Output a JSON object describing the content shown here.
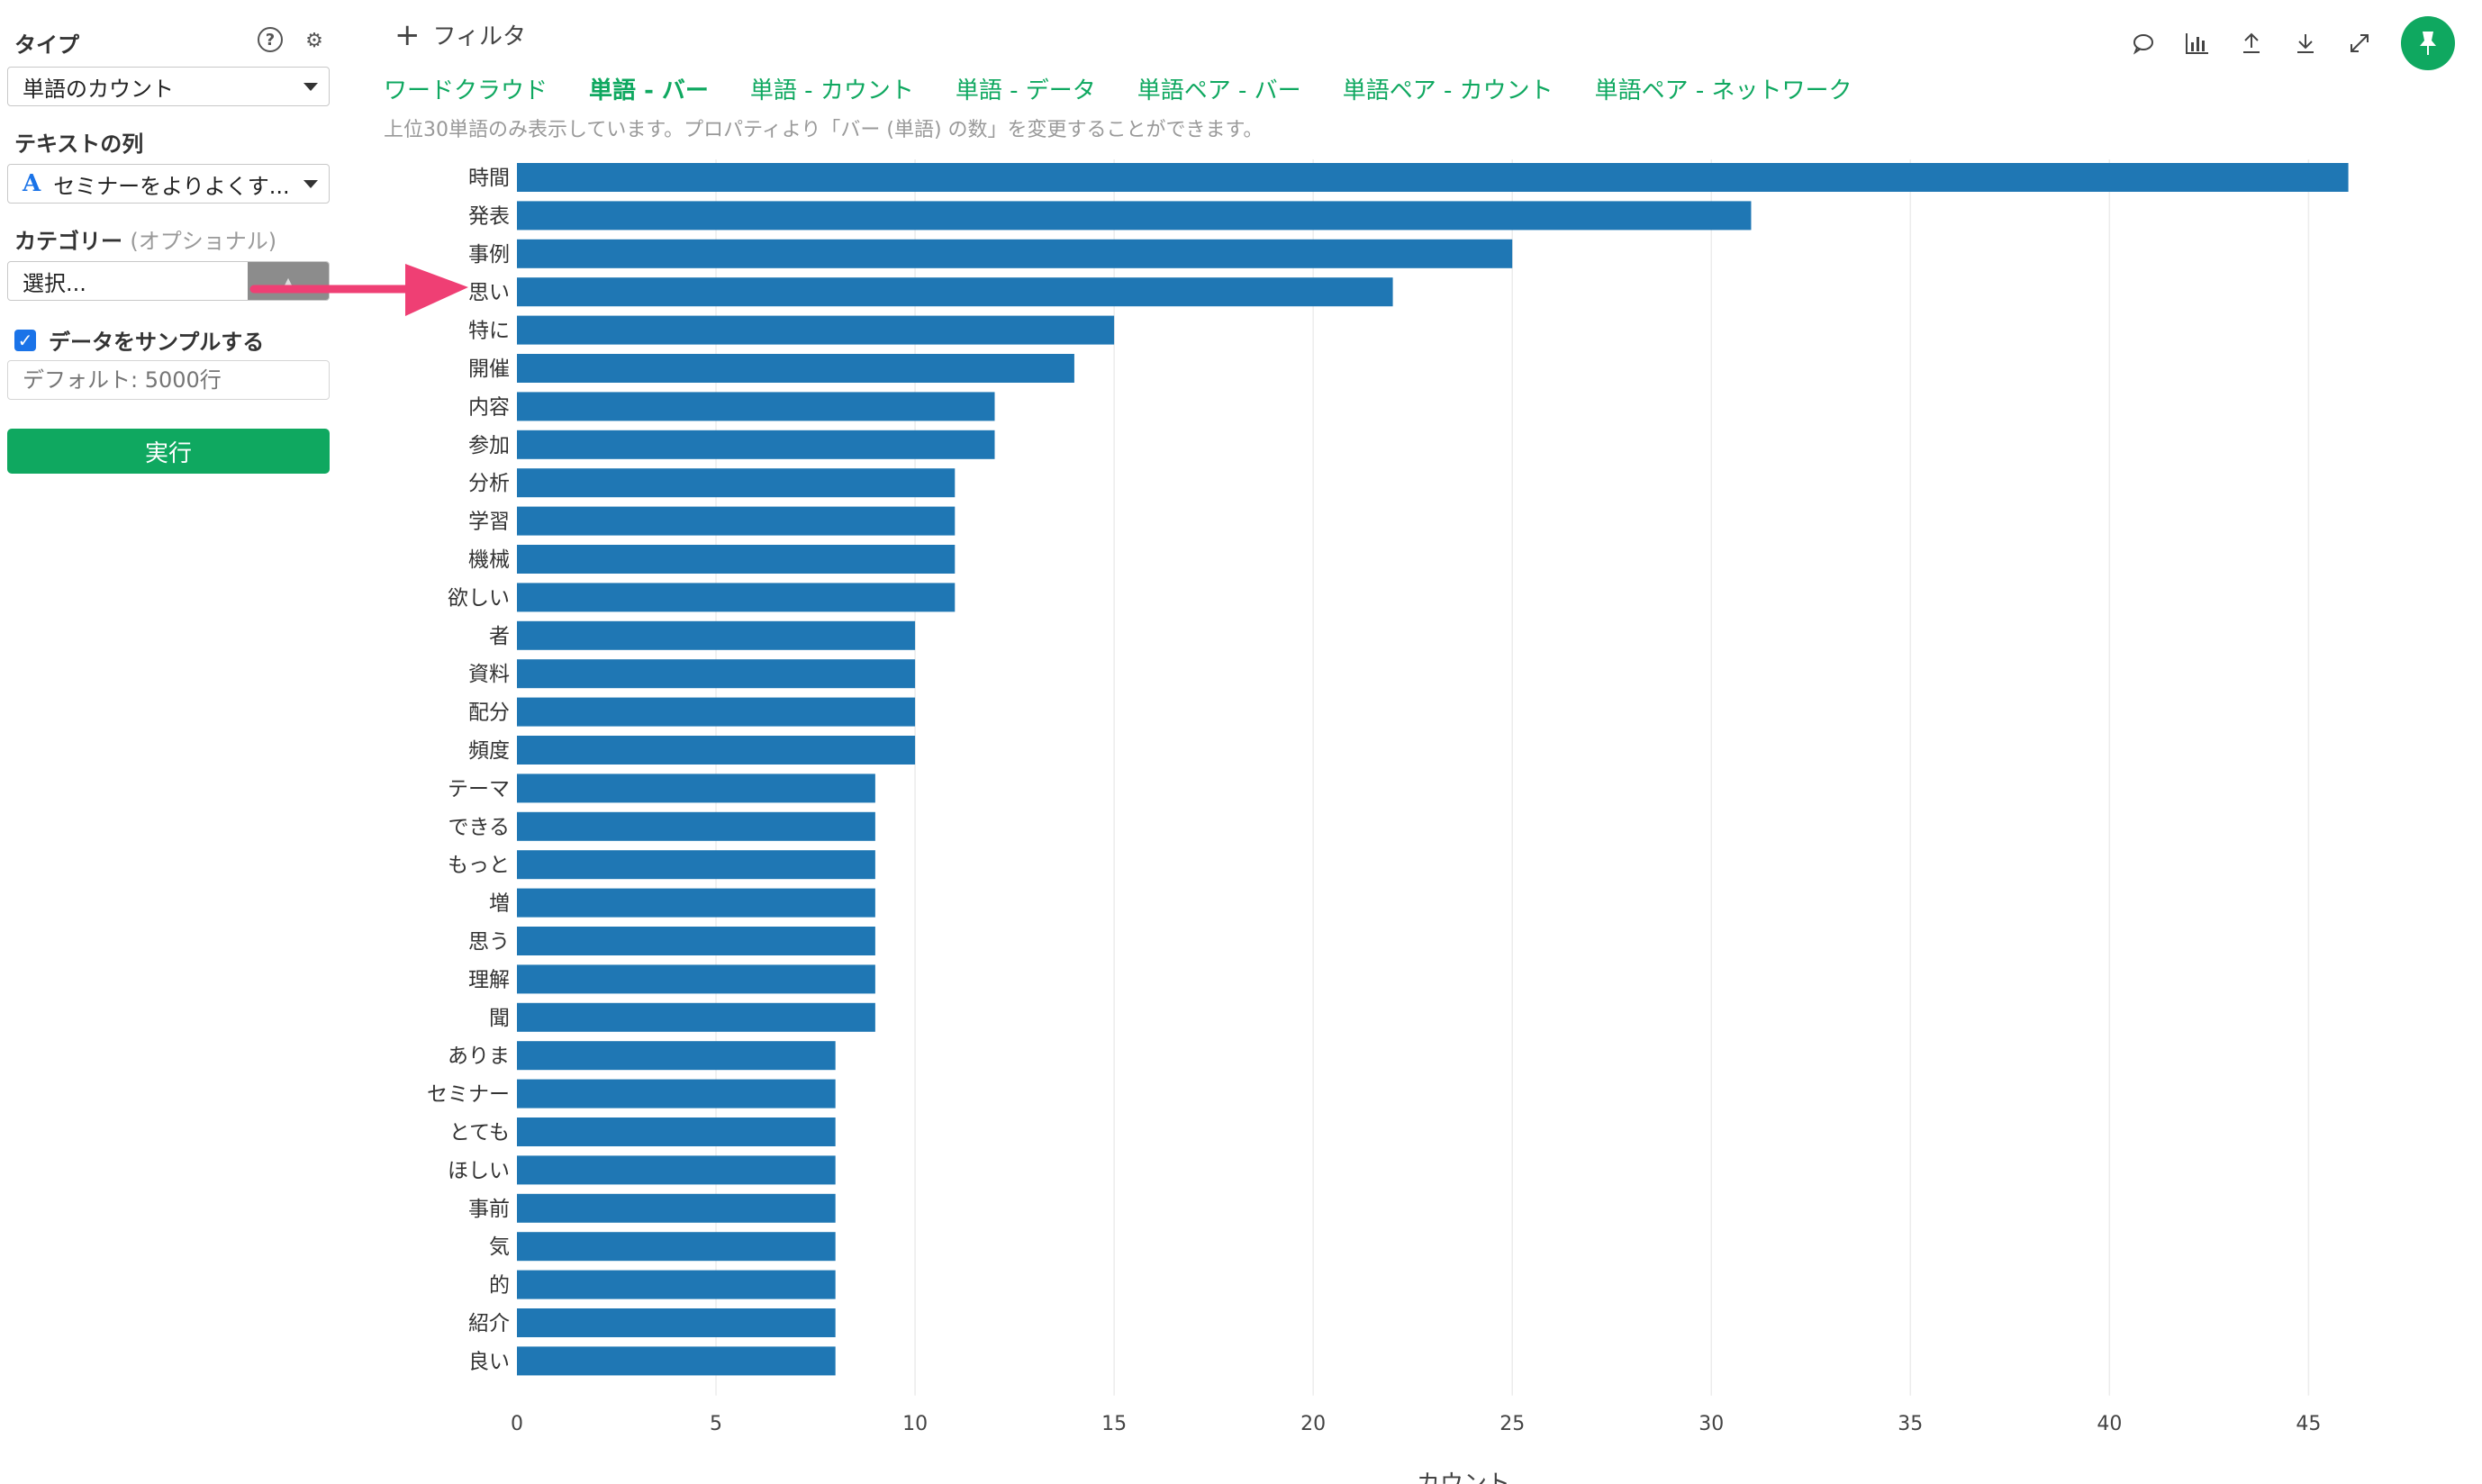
{
  "sidebar": {
    "type_label": "タイプ",
    "type_value": "単語のカウント",
    "text_col_label": "テキストの列",
    "text_col_value": "セミナーをよりよくす...",
    "text_col_icon_glyph": "A",
    "category_label": "カテゴリー",
    "category_optional": "(オプショナル)",
    "category_placeholder": "選択...",
    "sample_label": "データをサンプルする",
    "sample_checked": true,
    "sample_placeholder": "デフォルト: 5000行",
    "run_label": "実行",
    "icons": [
      "help-icon",
      "gear-icon",
      "check-icon",
      "caret-down-icon"
    ]
  },
  "topbar": {
    "filter_label": "フィルタ",
    "icons": [
      "comment-icon",
      "chart-icon",
      "upload-icon",
      "download-icon",
      "expand-icon",
      "pin-icon"
    ]
  },
  "tabs": [
    {
      "label": "ワードクラウド",
      "active": false
    },
    {
      "label": "単語 - バー",
      "active": true
    },
    {
      "label": "単語 - カウント",
      "active": false
    },
    {
      "label": "単語 - データ",
      "active": false
    },
    {
      "label": "単語ペア - バー",
      "active": false
    },
    {
      "label": "単語ペア - カウント",
      "active": false
    },
    {
      "label": "単語ペア - ネットワーク",
      "active": false
    }
  ],
  "hint": "上位30単語のみ表示しています。プロパティより「バー (単語) の数」を変更することができます。",
  "colors": {
    "bar": "#1f77b4",
    "accent": "#0fa860",
    "arrow": "#ef3f74"
  },
  "chart_data": {
    "type": "bar",
    "orientation": "horizontal",
    "categories": [
      "時間",
      "発表",
      "事例",
      "思い",
      "特に",
      "開催",
      "内容",
      "参加",
      "分析",
      "学習",
      "機械",
      "欲しい",
      "者",
      "資料",
      "配分",
      "頻度",
      "テーマ",
      "できる",
      "もっと",
      "増",
      "思う",
      "理解",
      "聞",
      "ありま",
      "セミナー",
      "とても",
      "ほしい",
      "事前",
      "気",
      "的",
      "紹介",
      "良い"
    ],
    "values": [
      46,
      31,
      25,
      22,
      15,
      14,
      12,
      12,
      11,
      11,
      11,
      11,
      10,
      10,
      10,
      10,
      9,
      9,
      9,
      9,
      9,
      9,
      9,
      8,
      8,
      8,
      8,
      8,
      8,
      8,
      8,
      8
    ],
    "xticks": [
      0,
      5,
      10,
      15,
      20,
      25,
      30,
      35,
      40,
      45
    ],
    "xlim": [
      0,
      48
    ],
    "xlabel": "カウント",
    "ylabel": "",
    "grid": true
  }
}
